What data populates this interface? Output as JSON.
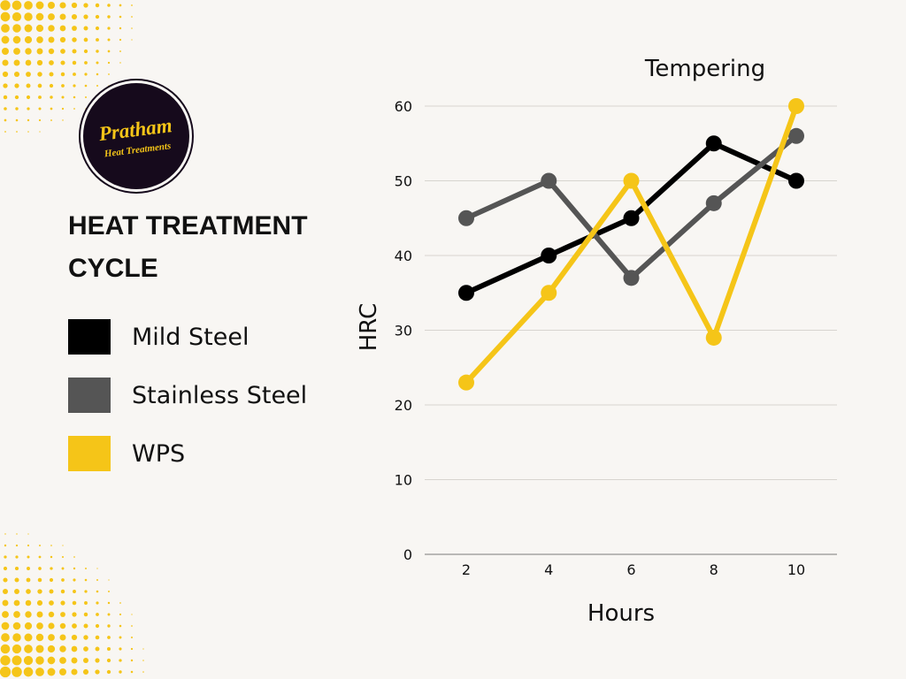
{
  "colors": {
    "background": "#f8f6f3",
    "accent": "#f5c518",
    "mild_steel": "#000000",
    "stainless_steel": "#555555",
    "wps": "#f5c518",
    "grid": "#d7d4cf"
  },
  "logo": {
    "line1": "Pratham",
    "line2": "Heat Treatments"
  },
  "heading": {
    "line1": "HEAT TREATMENT",
    "line2": "CYCLE"
  },
  "legend": [
    {
      "label": "Mild Steel",
      "color": "#000000"
    },
    {
      "label": "Stainless Steel",
      "color": "#555555"
    },
    {
      "label": "WPS",
      "color": "#f5c518"
    }
  ],
  "chart_data": {
    "type": "line",
    "title": "Tempering",
    "xlabel": "Hours",
    "ylabel": "HRC",
    "x": [
      2,
      4,
      6,
      8,
      10
    ],
    "x_ticks": [
      "2",
      "4",
      "6",
      "8",
      "10"
    ],
    "y_ticks": [
      "0",
      "10",
      "20",
      "30",
      "40",
      "50",
      "60"
    ],
    "ylim": [
      0,
      60
    ],
    "grid": true,
    "series": [
      {
        "name": "Mild Steel",
        "color": "#000000",
        "values": [
          35,
          40,
          45,
          55,
          50
        ]
      },
      {
        "name": "Stainless Steel",
        "color": "#555555",
        "values": [
          45,
          50,
          37,
          47,
          56
        ]
      },
      {
        "name": "WPS",
        "color": "#f5c518",
        "values": [
          23,
          35,
          50,
          29,
          60
        ]
      }
    ]
  }
}
